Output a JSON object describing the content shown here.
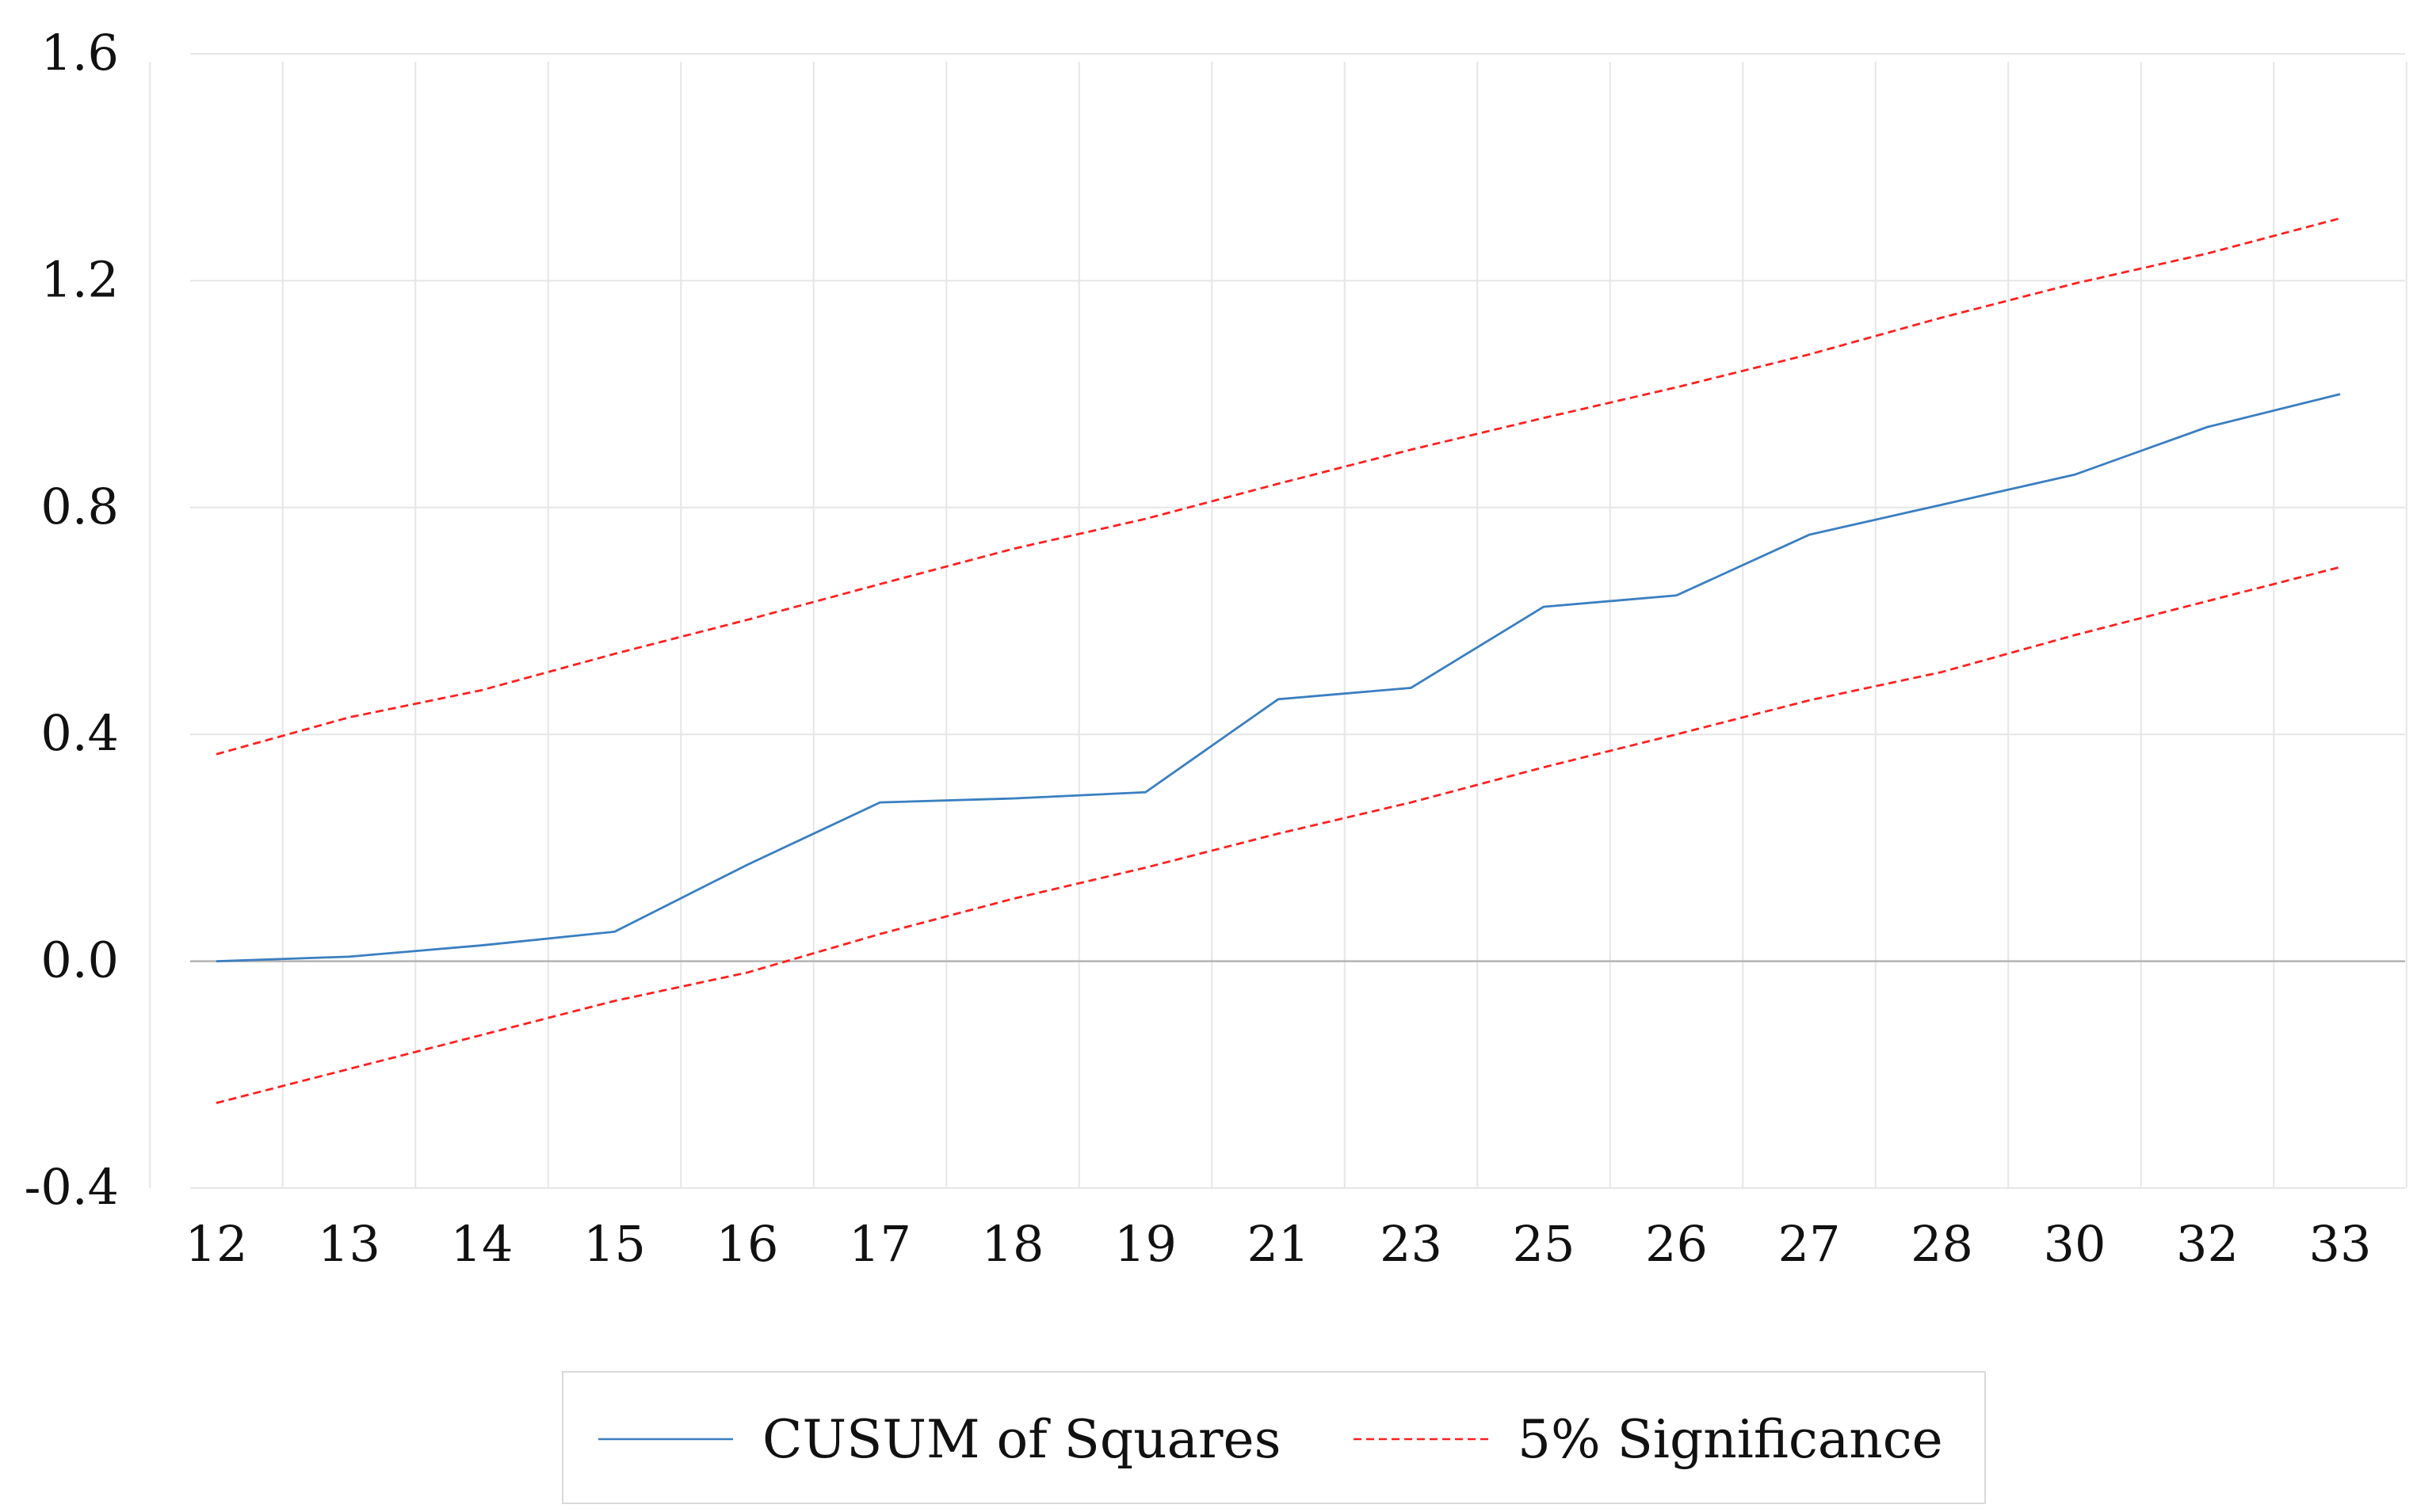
{
  "chart_data": {
    "type": "line",
    "title": "",
    "xlabel": "",
    "ylabel": "",
    "categories": [
      "12",
      "13",
      "14",
      "15",
      "16",
      "17",
      "18",
      "19",
      "21",
      "23",
      "25",
      "26",
      "27",
      "28",
      "30",
      "32",
      "33"
    ],
    "ylim": [
      -0.4,
      1.6
    ],
    "yticks": [
      "1.6",
      "1.2",
      "0.8",
      "0.4",
      "0.0",
      "-0.4"
    ],
    "ytick_values": [
      1.6,
      1.2,
      0.8,
      0.4,
      0.0,
      -0.4
    ],
    "grid": true,
    "legend_position": "bottom",
    "series": [
      {
        "name": "CUSUM of Squares",
        "color": "#3a7fc1",
        "style": "solid",
        "values": [
          0.0,
          0.008,
          0.028,
          0.052,
          0.17,
          0.28,
          0.287,
          0.298,
          0.462,
          0.482,
          0.625,
          0.645,
          0.752,
          0.805,
          0.858,
          0.942,
          1.0
        ]
      },
      {
        "name": "5% Significance",
        "color": "#ff2020",
        "style": "dashed",
        "values": [
          0.365,
          0.43,
          0.478,
          0.542,
          0.602,
          0.665,
          0.727,
          0.78,
          0.842,
          0.902,
          0.958,
          1.012,
          1.07,
          1.135,
          1.195,
          1.248,
          1.31
        ]
      },
      {
        "name": "5% Significance (lower)",
        "color": "#ff2020",
        "style": "dashed",
        "values": [
          -0.25,
          -0.19,
          -0.13,
          -0.07,
          -0.02,
          0.048,
          0.11,
          0.165,
          0.225,
          0.28,
          0.342,
          0.4,
          0.46,
          0.51,
          0.575,
          0.635,
          0.695
        ]
      }
    ],
    "legend": [
      "CUSUM of Squares",
      "5% Significance"
    ]
  }
}
